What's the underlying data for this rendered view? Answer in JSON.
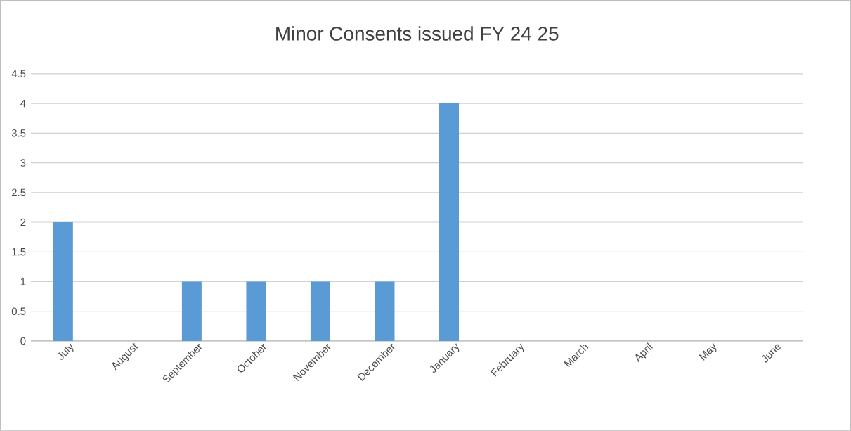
{
  "chart_data": {
    "type": "bar",
    "title": "Minor Consents issued FY 24 25",
    "categories": [
      "July",
      "August",
      "September",
      "October",
      "November",
      "December",
      "January",
      "February",
      "March",
      "April",
      "May",
      "June"
    ],
    "values": [
      2,
      0,
      1,
      1,
      1,
      1,
      4,
      0,
      0,
      0,
      0,
      0
    ],
    "color": "#5b9bd5",
    "ylim": [
      0,
      4.5
    ],
    "yticks": [
      0,
      0.5,
      1,
      1.5,
      2,
      2.5,
      3,
      3.5,
      4,
      4.5
    ],
    "grid": "y"
  }
}
